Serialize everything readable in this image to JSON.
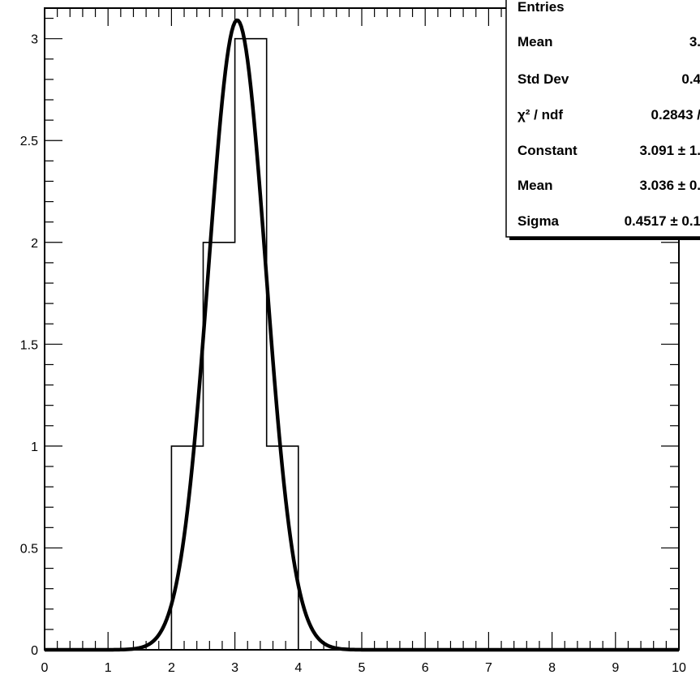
{
  "chart_data": {
    "type": "bar",
    "title": "",
    "xlabel": "",
    "ylabel": "",
    "xlim": [
      0,
      10
    ],
    "ylim": [
      0,
      3.15
    ],
    "bin_edges": [
      0,
      0.5,
      1,
      1.5,
      2,
      2.5,
      3,
      3.5,
      4,
      4.5,
      5,
      5.5,
      6,
      6.5,
      7,
      7.5,
      8,
      8.5,
      9,
      9.5,
      10
    ],
    "values": [
      0,
      0,
      0,
      0,
      1,
      2,
      3,
      1,
      0,
      0,
      0,
      0,
      0,
      0,
      0,
      0,
      0,
      0,
      0,
      0
    ],
    "x_tick_labels": [
      "0",
      "1",
      "2",
      "3",
      "4",
      "5",
      "6",
      "7",
      "8",
      "9",
      "10"
    ],
    "y_tick_labels": [
      "0",
      "0.5",
      "1",
      "1.5",
      "2",
      "2.5",
      "3"
    ],
    "fit": {
      "type": "gaus",
      "constant": 3.091,
      "mean": 3.036,
      "sigma": 0.4517
    },
    "grid": false,
    "legend": "top-right"
  },
  "stats_box": {
    "rows": [
      {
        "label": "Entries",
        "value": ""
      },
      {
        "label": "Mean",
        "value": "3."
      },
      {
        "label": "Std Dev",
        "value": "0.4"
      },
      {
        "label": "χ² / ndf",
        "value": "0.2843 /"
      },
      {
        "label": "Constant",
        "value": "3.091 ± 1."
      },
      {
        "label": "Mean",
        "value": "3.036 ± 0."
      },
      {
        "label": "Sigma",
        "value": "0.4517 ± 0.1"
      }
    ]
  }
}
